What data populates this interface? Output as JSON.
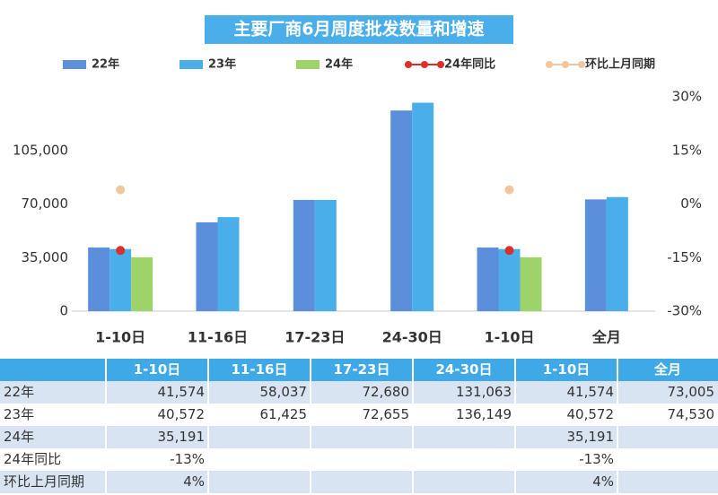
{
  "chart_data": {
    "type": "bar",
    "title": "主要厂商6月周度批发数量和增速",
    "categories": [
      "1-10日",
      "11-16日",
      "17-23日",
      "24-30日",
      "1-10日",
      "全月"
    ],
    "series": [
      {
        "name": "22年",
        "color": "#5b8fdb",
        "values": [
          41574,
          58037,
          72680,
          131063,
          41574,
          73005
        ],
        "value_labels": [
          "41,574",
          "58,037",
          "72,680",
          "131,063",
          "41,574",
          "73,005"
        ]
      },
      {
        "name": "23年",
        "color": "#4aaeea",
        "values": [
          40572,
          61425,
          72655,
          136149,
          40572,
          74530
        ],
        "value_labels": [
          "40,572",
          "61,425",
          "72,655",
          "136,149",
          "40,572",
          "74,530"
        ]
      },
      {
        "name": "24年",
        "color": "#9ed36a",
        "values": [
          35191,
          null,
          null,
          null,
          35191,
          null
        ],
        "value_labels": [
          "35,191",
          null,
          null,
          null,
          "35,191",
          null
        ]
      },
      {
        "name": "24年同比",
        "color": "#d9302c",
        "type": "scatter",
        "axis": "y2",
        "values": [
          -13,
          null,
          null,
          null,
          -13,
          null
        ],
        "value_labels": [
          "-13%",
          null,
          null,
          null,
          "-13%",
          null
        ]
      },
      {
        "name": "环比上月同期",
        "color": "#f2c79e",
        "type": "scatter",
        "axis": "y2",
        "values": [
          4,
          null,
          null,
          null,
          4,
          null
        ],
        "value_labels": [
          "4%",
          null,
          null,
          null,
          "4%",
          null
        ]
      }
    ],
    "ylim": [
      0,
      140000
    ],
    "yticks": [
      0,
      {
        "value": 35000,
        "label": "35,000"
      },
      {
        "value": 70000,
        "label": "70,000"
      },
      {
        "value": 105000,
        "label": "105,000"
      }
    ],
    "y2lim": [
      -30,
      30
    ],
    "y2ticks": [
      {
        "value": -30,
        "label": "-30%"
      },
      {
        "value": -15,
        "label": "-15%"
      },
      {
        "value": 0,
        "label": "0%"
      },
      {
        "value": 15,
        "label": "15%"
      },
      {
        "value": 30,
        "label": "30%"
      }
    ],
    "grid": false,
    "legend": "top"
  }
}
